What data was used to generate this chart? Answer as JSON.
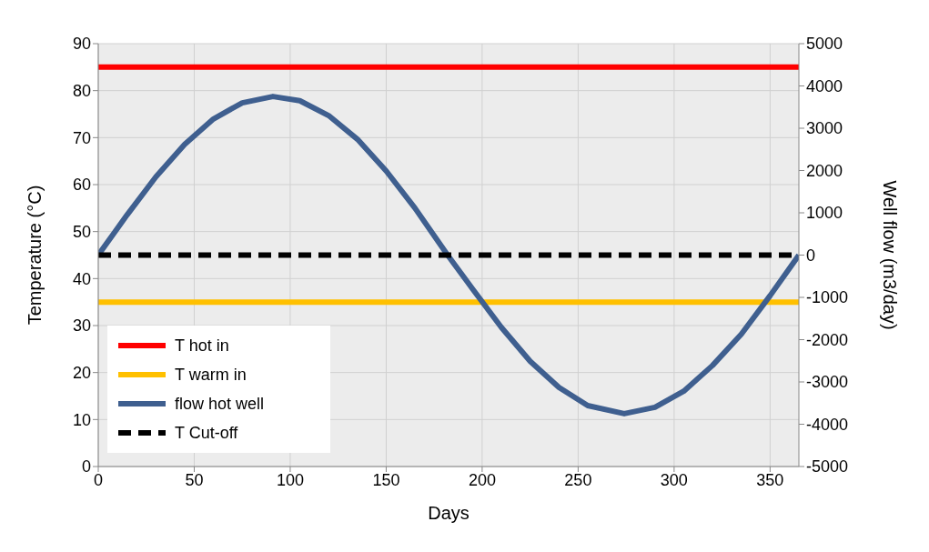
{
  "chart_data": {
    "type": "line",
    "xlabel": "Days",
    "ylabel": "Temperature (°C)",
    "y2label": "Well flow (m3/day)",
    "xlim": [
      0,
      365
    ],
    "xticks": [
      0,
      50,
      100,
      150,
      200,
      250,
      300,
      350
    ],
    "ylim": [
      0,
      90
    ],
    "yticks": [
      0,
      10,
      20,
      30,
      40,
      50,
      60,
      70,
      80,
      90
    ],
    "y2lim": [
      -5000,
      5000
    ],
    "y2ticks": [
      -5000,
      -4000,
      -3000,
      -2000,
      -1000,
      0,
      1000,
      2000,
      3000,
      4000,
      5000
    ],
    "grid": true,
    "legend": "bottom left",
    "marker": "none",
    "series": [
      {
        "name": "T hot in",
        "color": "#ff0000",
        "x": [
          0,
          365
        ],
        "values": [
          85,
          85
        ]
      },
      {
        "name": "T warm in",
        "color": "#ffc000",
        "x": [
          0,
          365
        ],
        "values": [
          35,
          35
        ]
      },
      {
        "name": "flow hot well",
        "color": "#3f5f8f",
        "axis": "y2",
        "x": [
          0,
          15,
          30,
          45,
          60,
          75,
          91,
          105,
          120,
          135,
          150,
          165,
          182,
          195,
          210,
          225,
          240,
          255,
          274,
          290,
          305,
          320,
          335,
          350,
          365
        ],
        "values": [
          0,
          950,
          1850,
          2620,
          3220,
          3600,
          3750,
          3650,
          3300,
          2740,
          1990,
          1110,
          0,
          -800,
          -1710,
          -2510,
          -3130,
          -3560,
          -3750,
          -3600,
          -3220,
          -2610,
          -1870,
          -960,
          0
        ]
      },
      {
        "name": "T Cut-off",
        "color": "#000000",
        "line_style": "dashed",
        "x": [
          0,
          365
        ],
        "values": [
          45,
          45
        ]
      }
    ]
  }
}
